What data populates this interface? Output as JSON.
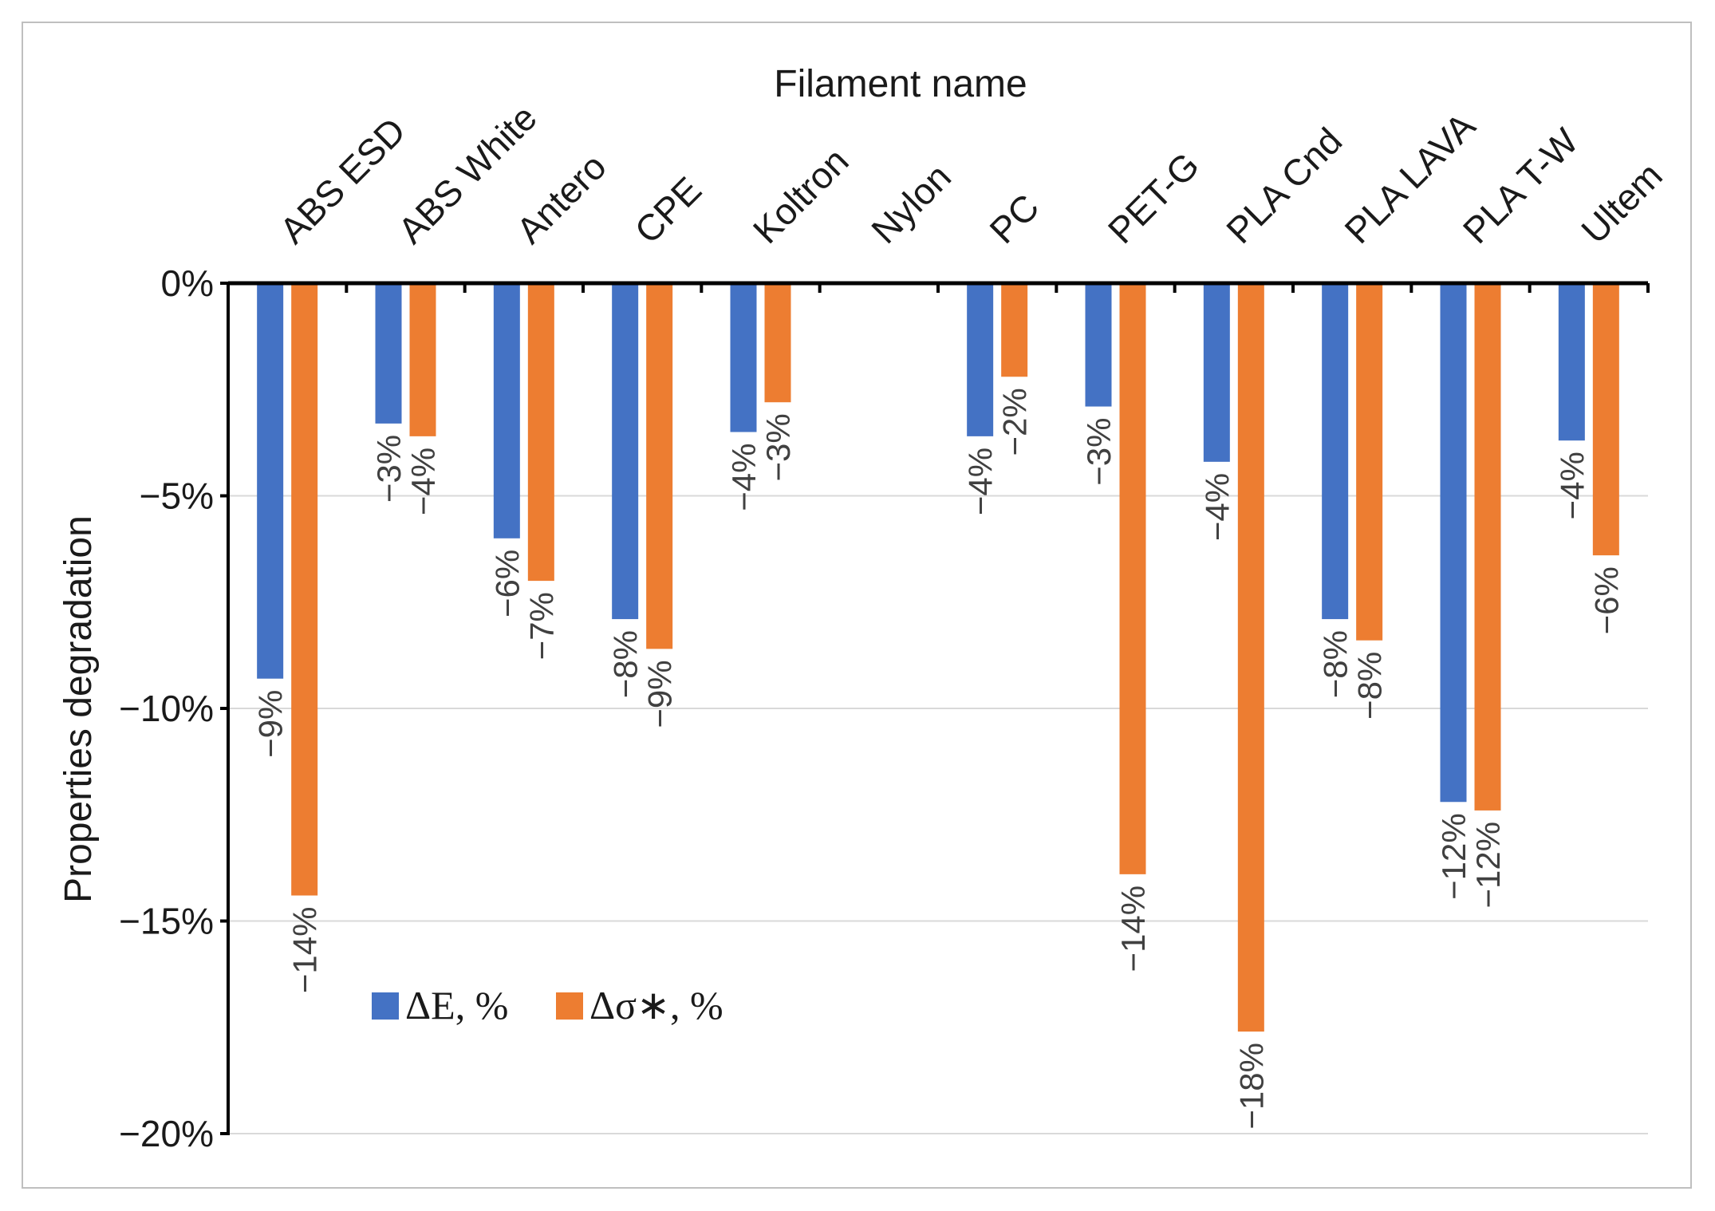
{
  "chart_data": {
    "type": "bar",
    "title": "",
    "xlabel": "Filament name",
    "ylabel": "Properties degradation",
    "ylim": [
      -20,
      0
    ],
    "yticks": [
      0,
      -5,
      -10,
      -15,
      -20
    ],
    "ytick_labels": [
      "0%",
      "−5%",
      "−10%",
      "−15%",
      "−20%"
    ],
    "grid": true,
    "categories": [
      "ABS ESD",
      "ABS White",
      "Antero",
      "CPE",
      "Koltron",
      "Nylon",
      "PC",
      "PET-G",
      "PLA Cnd",
      "PLA LAVA",
      "PLA T-W",
      "Ultem"
    ],
    "series": [
      {
        "name": "ΔE, %",
        "color": "#4472c4",
        "values": [
          -9.3,
          -3.3,
          -6.0,
          -7.9,
          -3.5,
          null,
          -3.6,
          -2.9,
          -4.2,
          -7.9,
          -12.2,
          -3.7
        ],
        "labels": [
          "−9%",
          "−3%",
          "−6%",
          "−8%",
          "−4%",
          "",
          "−4%",
          "−3%",
          "−4%",
          "−8%",
          "−12%",
          "−4%"
        ]
      },
      {
        "name": "Δσ∗, %",
        "color": "#ed7d31",
        "values": [
          -14.4,
          -3.6,
          -7.0,
          -8.6,
          -2.8,
          null,
          -2.2,
          -13.9,
          -17.6,
          -8.4,
          -12.4,
          -6.4
        ],
        "labels": [
          "−14%",
          "−4%",
          "−7%",
          "−9%",
          "−3%",
          "",
          "−2%",
          "−14%",
          "−18%",
          "−8%",
          "−12%",
          "−6%"
        ]
      }
    ],
    "legend": {
      "position": "lower-left",
      "entries": [
        "ΔE, %",
        "Δσ∗, %"
      ]
    }
  }
}
